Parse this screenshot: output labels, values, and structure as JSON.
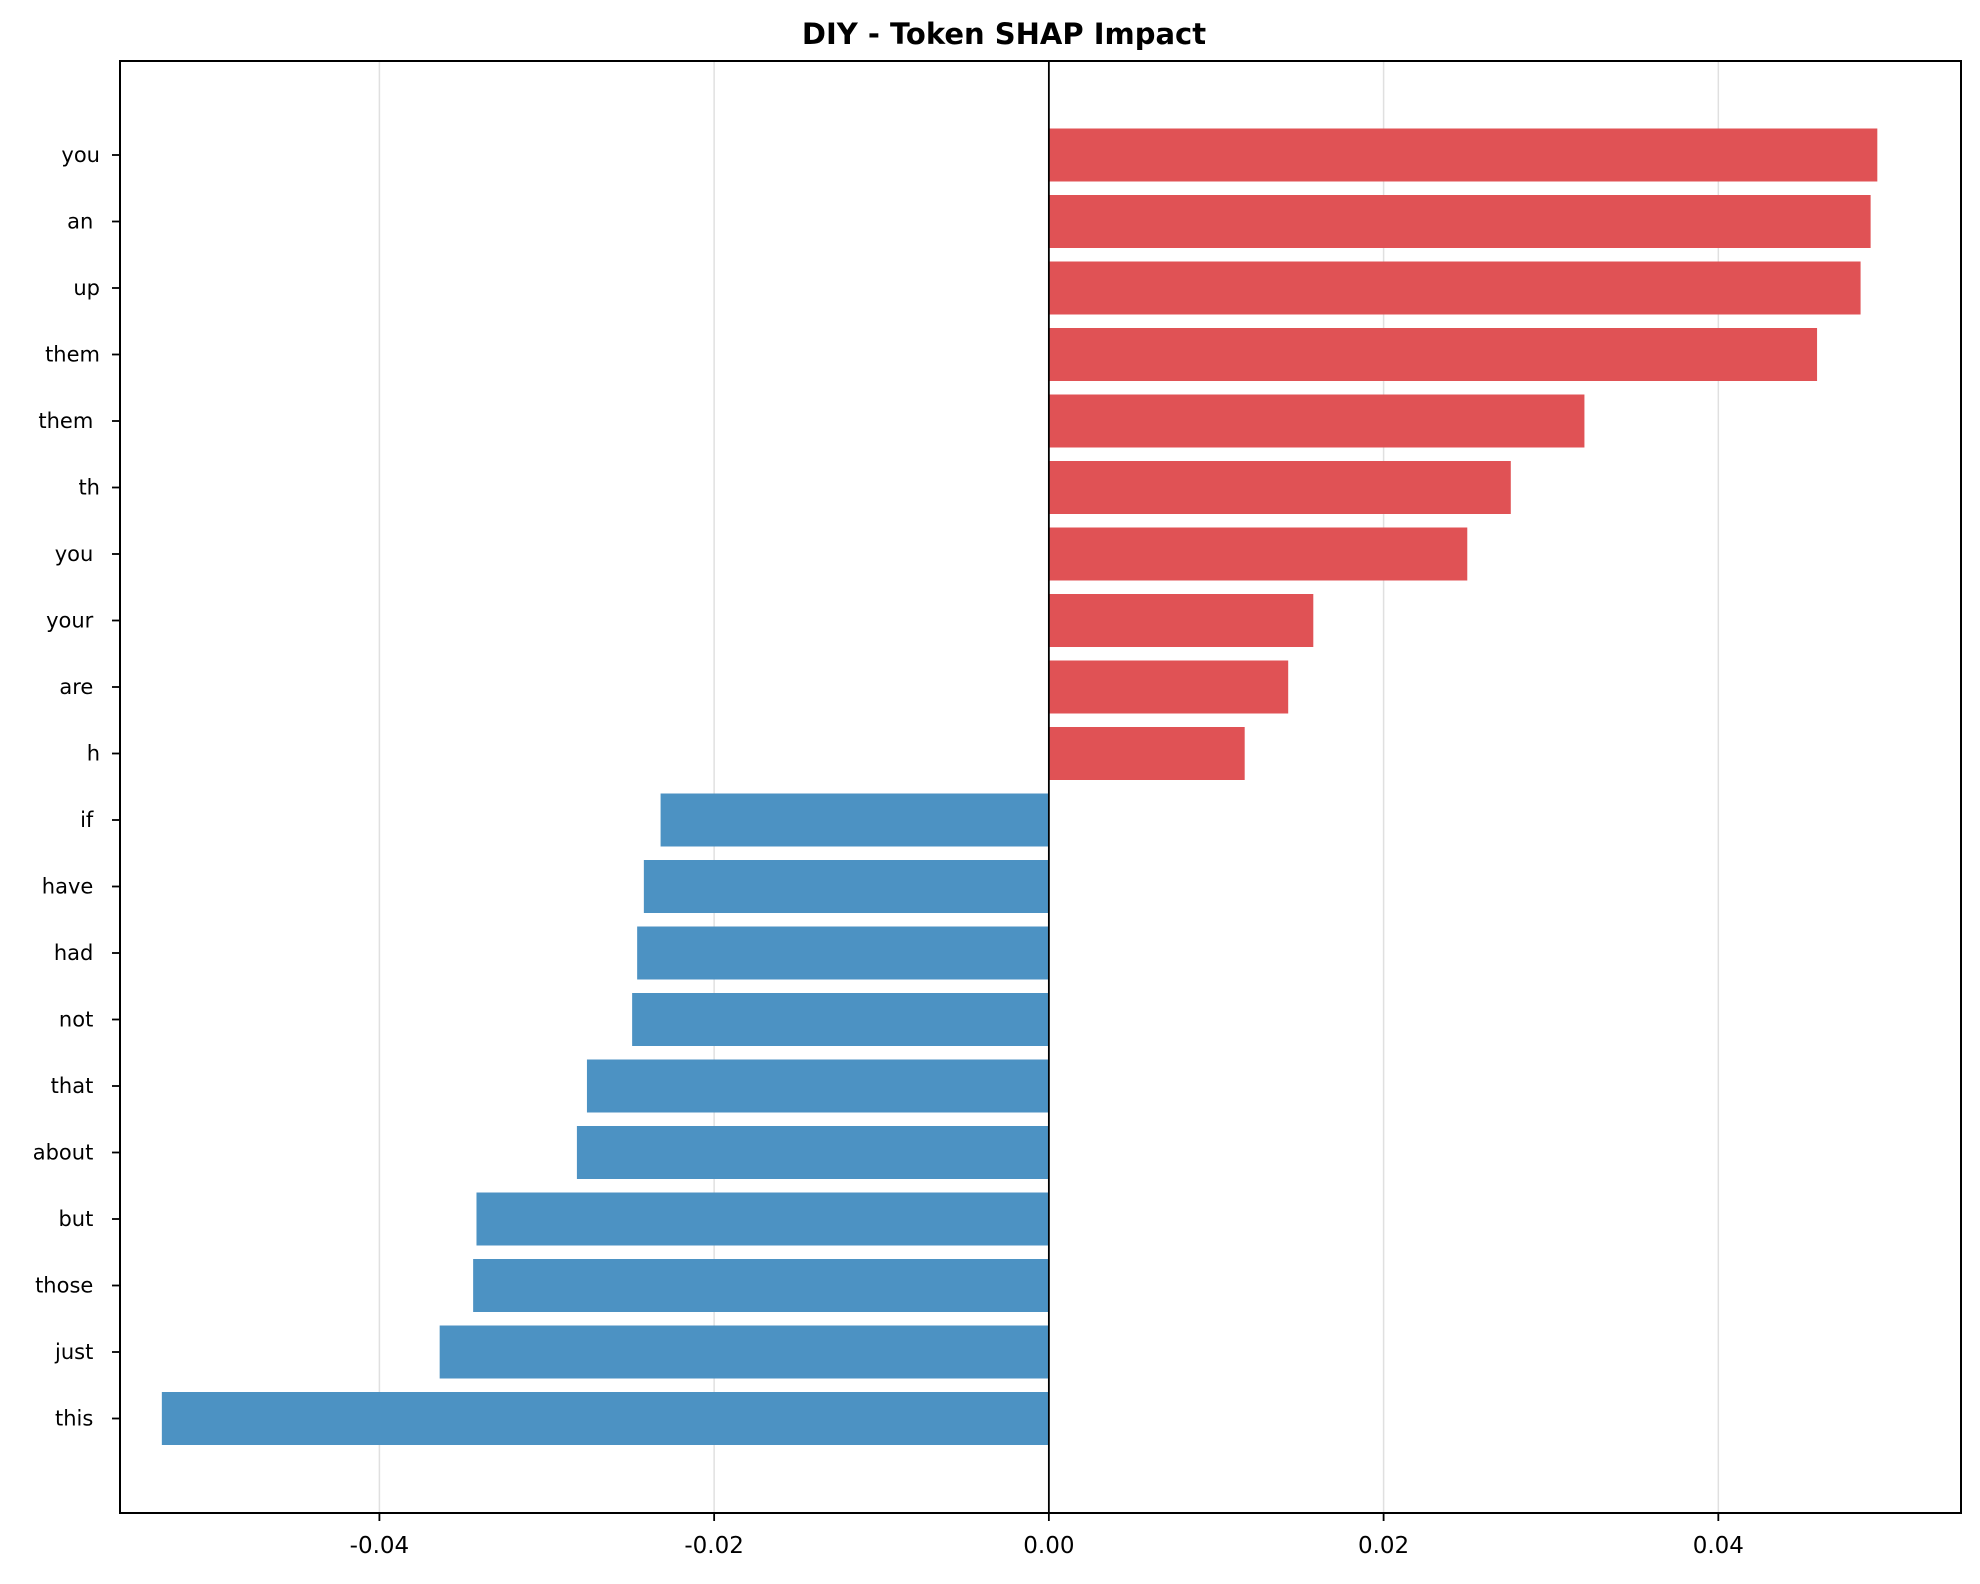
{
  "chart_data": {
    "type": "bar",
    "orientation": "horizontal",
    "title": "DIY - Token SHAP Impact",
    "xlabel": "",
    "ylabel": "",
    "xlim": [
      -0.0555,
      0.0545
    ],
    "xticks": [
      -0.04,
      -0.02,
      0.0,
      0.02,
      0.04
    ],
    "xtick_labels": [
      "-0.04",
      "-0.02",
      "0.00",
      "0.02",
      "0.04"
    ],
    "grid": "x-only",
    "legend": "none",
    "colors": {
      "positive": "#e05255",
      "negative": "#4c92c3",
      "zero_line": "#000000",
      "grid": "#e0e0e0"
    },
    "categories": [
      "you",
      "an ",
      "up",
      "them",
      "them ",
      "th",
      "you ",
      "your ",
      "are ",
      "h",
      "if ",
      "have ",
      "had ",
      "not ",
      "that ",
      "about ",
      "but ",
      "those ",
      "just ",
      "this "
    ],
    "values": [
      0.0495,
      0.0491,
      0.0485,
      0.0459,
      0.032,
      0.0276,
      0.025,
      0.0158,
      0.0143,
      0.0117,
      -0.0232,
      -0.0242,
      -0.0246,
      -0.0249,
      -0.0276,
      -0.0282,
      -0.0342,
      -0.0344,
      -0.0364,
      -0.053
    ]
  }
}
